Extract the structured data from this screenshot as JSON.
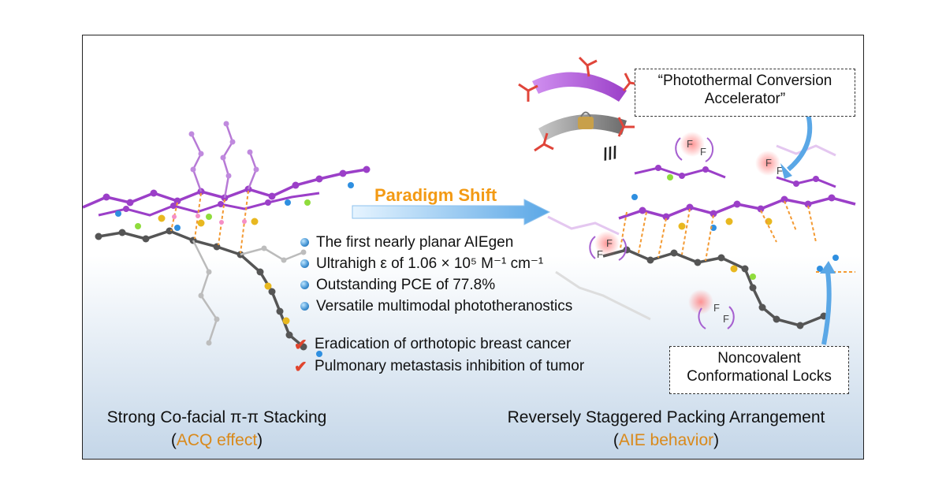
{
  "arrow_label": "Paradigm Shift",
  "equiv_symbol": "///",
  "bullets": [
    "The first nearly planar AIEgen",
    "Ultrahigh ε of 1.06 × 10⁵ M⁻¹ cm⁻¹",
    "Outstanding PCE of 77.8%",
    "Versatile multimodal phototheranostics"
  ],
  "checks": [
    "Eradication of orthotopic breast cancer",
    "Pulmonary metastasis inhibition of tumor"
  ],
  "callout_top": {
    "line1": "“Photothermal Conversion",
    "line2": "Accelerator”"
  },
  "callout_bottom": {
    "line1": "Noncovalent",
    "line2": "Conformational Locks"
  },
  "caption_left": {
    "line1": "Strong Co-facial π-π Stacking",
    "open": "(",
    "highlight": "ACQ effect",
    "close": ")"
  },
  "caption_right": {
    "line1": "Reversely Staggered Packing Arrangement",
    "open": "(",
    "highlight": "AIE behavior",
    "close": ")"
  },
  "atom_label": "F",
  "colors": {
    "purple": "#9b3fc8",
    "dark_gray": "#555555",
    "sulfur": "#e8b820",
    "nitrogen": "#2f8fe0",
    "fluorine": "#8fdc3c",
    "contact": "#f39a33",
    "accent_orange": "#d9891a",
    "arrow_blue": "#5aa7e6",
    "check_red": "#e0452e"
  }
}
